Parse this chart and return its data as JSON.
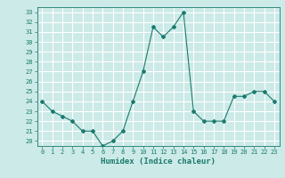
{
  "x": [
    0,
    1,
    2,
    3,
    4,
    5,
    6,
    7,
    8,
    9,
    10,
    11,
    12,
    13,
    14,
    15,
    16,
    17,
    18,
    19,
    20,
    21,
    22,
    23
  ],
  "y": [
    24.0,
    23.0,
    22.5,
    22.0,
    21.0,
    21.0,
    19.5,
    20.0,
    21.0,
    24.0,
    27.0,
    31.5,
    30.5,
    31.5,
    33.0,
    23.0,
    22.0,
    22.0,
    22.0,
    24.5,
    24.5,
    25.0,
    25.0,
    24.0
  ],
  "xlabel": "Humidex (Indice chaleur)",
  "line_color": "#1a7a6e",
  "marker": "D",
  "marker_size": 2,
  "bg_color": "#cceae7",
  "grid_color": "#ffffff",
  "ylim": [
    19.5,
    33.5
  ],
  "xlim": [
    -0.5,
    23.5
  ],
  "yticks": [
    20,
    21,
    22,
    23,
    24,
    25,
    26,
    27,
    28,
    29,
    30,
    31,
    32,
    33
  ],
  "xticks": [
    0,
    1,
    2,
    3,
    4,
    5,
    6,
    7,
    8,
    9,
    10,
    11,
    12,
    13,
    14,
    15,
    16,
    17,
    18,
    19,
    20,
    21,
    22,
    23
  ]
}
